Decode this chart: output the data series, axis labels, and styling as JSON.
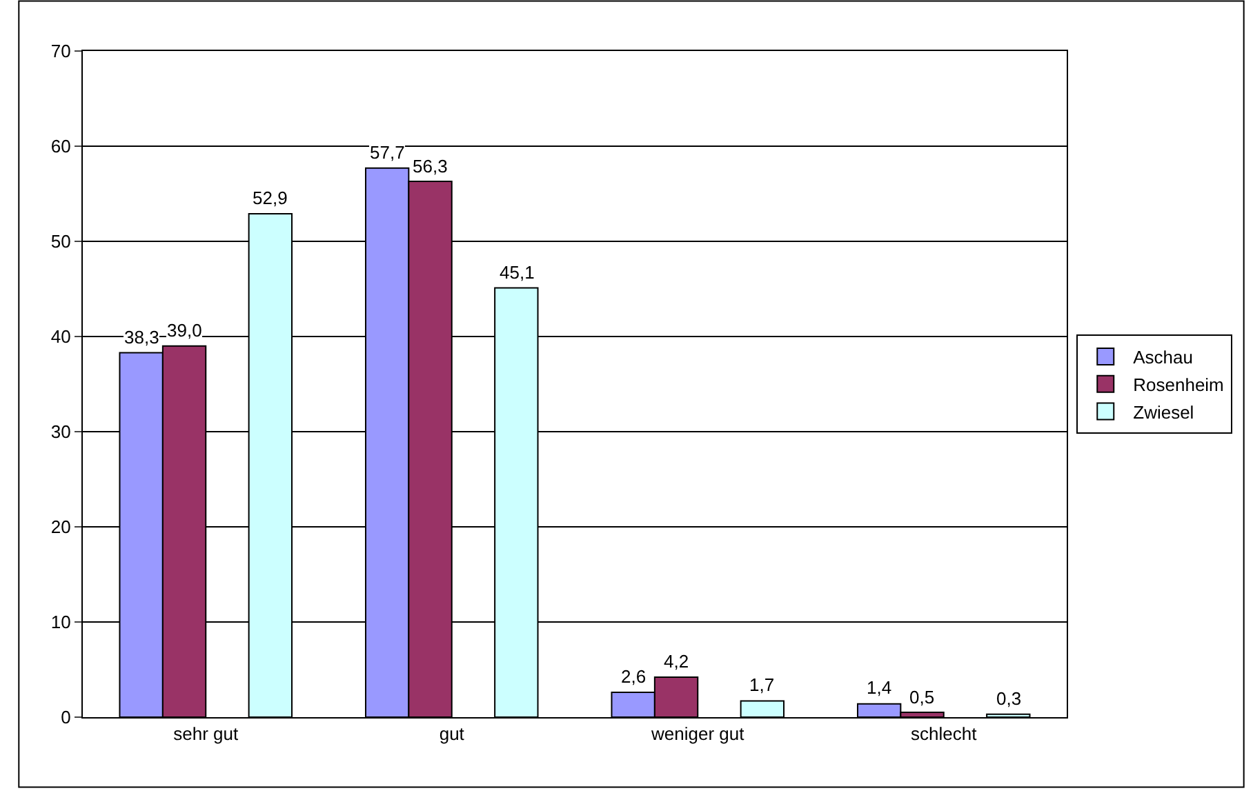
{
  "chart_data": {
    "type": "bar",
    "categories": [
      "sehr gut",
      "gut",
      "weniger gut",
      "schlecht"
    ],
    "series": [
      {
        "name": "Aschau",
        "color": "#9999ff",
        "values": [
          38.3,
          57.7,
          2.6,
          1.4
        ],
        "value_labels": [
          "38,3",
          "57,7",
          "2,6",
          "1,4"
        ]
      },
      {
        "name": "Rosenheim",
        "color": "#993366",
        "values": [
          39.0,
          56.3,
          4.2,
          0.5
        ],
        "value_labels": [
          "39,0",
          "56,3",
          "4,2",
          "0,5"
        ]
      },
      {
        "name": "Zwiesel",
        "color": "#ccffff",
        "values": [
          52.9,
          45.1,
          1.7,
          0.3
        ],
        "value_labels": [
          "52,9",
          "45,1",
          "1,7",
          "0,3"
        ]
      }
    ],
    "ylim": [
      0,
      70
    ],
    "yticks": [
      0,
      10,
      20,
      30,
      40,
      50,
      60,
      70
    ],
    "grid": "y",
    "legend": "right"
  }
}
